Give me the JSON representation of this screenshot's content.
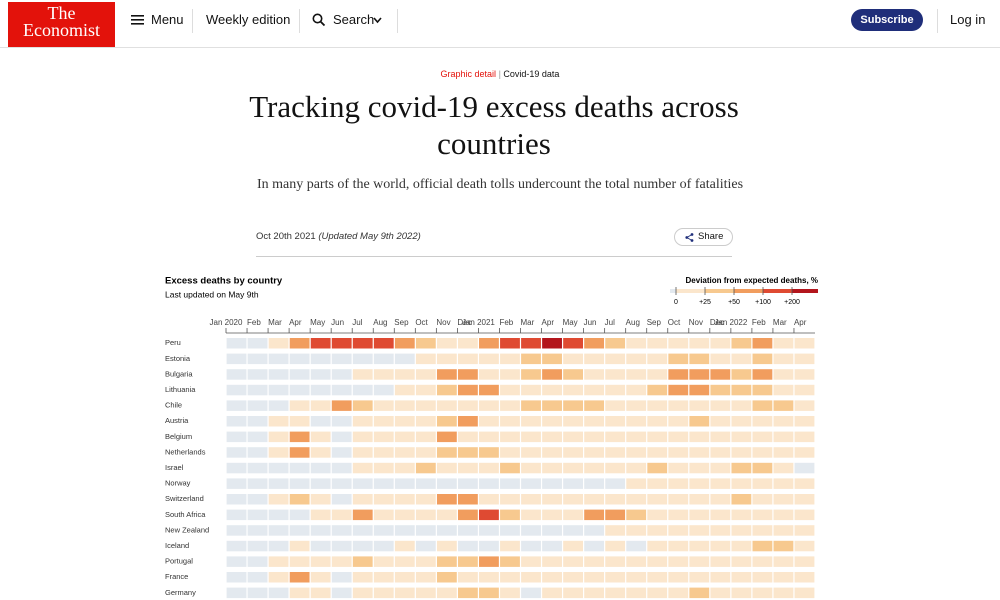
{
  "header": {
    "logo": [
      "The",
      "Economist"
    ],
    "menu": "Menu",
    "weekly": "Weekly edition",
    "search": "Search",
    "subscribe": "Subscribe",
    "login": "Log in"
  },
  "article": {
    "section": "Graphic detail",
    "topic": "Covid-19 data",
    "title": "Tracking covid-19 excess deaths across countries",
    "subtitle": "In many parts of the world, official death tolls undercount the total number of fatalities",
    "date": "Oct 20th 2021",
    "updated": "(Updated May 9th 2022)",
    "share": "Share"
  },
  "chart_data": {
    "type": "heatmap",
    "title": "Excess deaths by country",
    "subtitle": "Last updated on May 9th",
    "legend": {
      "title": "Deviation from expected deaths, %",
      "ticks": [
        0,
        {
          "value": 25,
          "label": "+25"
        },
        {
          "value": 50,
          "label": "+50"
        },
        {
          "value": 100,
          "label": "+100"
        },
        {
          "value": 200,
          "label": "+200"
        }
      ],
      "colors": [
        "#e3e9ef",
        "#fbe6cc",
        "#f7c98f",
        "#f19d5e",
        "#df4a32",
        "#b3151c"
      ]
    },
    "categories": [
      "Jan 2020",
      "Feb",
      "Mar",
      "Apr",
      "May",
      "Jun",
      "Jul",
      "Aug",
      "Sep",
      "Oct",
      "Nov",
      "Dec",
      "Jan 2021",
      "Feb",
      "Mar",
      "Apr",
      "May",
      "Jun",
      "Jul",
      "Aug",
      "Sep",
      "Oct",
      "Nov",
      "Dec",
      "Jan 2022",
      "Feb",
      "Mar",
      "Apr"
    ],
    "series": [
      {
        "name": "Peru",
        "values": [
          -5,
          -5,
          5,
          80,
          150,
          150,
          150,
          150,
          60,
          30,
          20,
          20,
          60,
          150,
          120,
          250,
          150,
          60,
          30,
          20,
          15,
          10,
          10,
          10,
          40,
          60,
          20,
          5
        ]
      },
      {
        "name": "Estonia",
        "values": [
          -5,
          -5,
          -5,
          -3,
          -5,
          -5,
          -3,
          -5,
          -3,
          5,
          10,
          15,
          15,
          20,
          40,
          40,
          20,
          10,
          5,
          10,
          15,
          30,
          40,
          20,
          15,
          30,
          20,
          10
        ]
      },
      {
        "name": "Bulgaria",
        "values": [
          -5,
          -3,
          -5,
          -5,
          -5,
          -3,
          5,
          10,
          10,
          20,
          80,
          70,
          20,
          15,
          40,
          70,
          40,
          10,
          10,
          10,
          20,
          70,
          90,
          60,
          30,
          50,
          20,
          10
        ]
      },
      {
        "name": "Lithuania",
        "values": [
          -5,
          -5,
          -5,
          -5,
          -5,
          -3,
          -3,
          -3,
          5,
          10,
          40,
          80,
          50,
          20,
          10,
          15,
          20,
          10,
          5,
          10,
          30,
          60,
          70,
          40,
          25,
          30,
          15,
          10
        ]
      },
      {
        "name": "Chile",
        "values": [
          -5,
          -5,
          -3,
          5,
          15,
          60,
          40,
          10,
          5,
          5,
          5,
          5,
          10,
          15,
          30,
          30,
          25,
          30,
          15,
          5,
          5,
          5,
          10,
          15,
          15,
          40,
          30,
          15
        ]
      },
      {
        "name": "Austria",
        "values": [
          -3,
          -5,
          5,
          10,
          -3,
          -3,
          5,
          10,
          5,
          10,
          40,
          50,
          15,
          5,
          10,
          10,
          10,
          5,
          5,
          5,
          10,
          15,
          25,
          15,
          10,
          15,
          15,
          10
        ]
      },
      {
        "name": "Belgium",
        "values": [
          -3,
          -5,
          20,
          90,
          20,
          -3,
          5,
          15,
          5,
          15,
          60,
          20,
          10,
          5,
          5,
          10,
          10,
          5,
          5,
          5,
          10,
          10,
          20,
          10,
          10,
          10,
          5,
          5
        ]
      },
      {
        "name": "Netherlands",
        "values": [
          -3,
          -5,
          15,
          50,
          10,
          -3,
          5,
          10,
          5,
          15,
          25,
          30,
          30,
          10,
          10,
          15,
          15,
          5,
          10,
          10,
          10,
          15,
          20,
          15,
          15,
          10,
          10,
          5
        ]
      },
      {
        "name": "Israel",
        "values": [
          -3,
          -3,
          -3,
          -3,
          -3,
          -3,
          5,
          10,
          20,
          30,
          10,
          10,
          20,
          25,
          15,
          5,
          5,
          0,
          5,
          15,
          30,
          15,
          5,
          10,
          25,
          30,
          10,
          -3
        ]
      },
      {
        "name": "Norway",
        "values": [
          -5,
          -5,
          -3,
          -3,
          -5,
          -5,
          -5,
          -5,
          -5,
          -5,
          -3,
          -3,
          -3,
          -5,
          -3,
          -3,
          -3,
          -3,
          -3,
          5,
          10,
          10,
          15,
          15,
          15,
          10,
          10,
          5
        ]
      },
      {
        "name": "Switzerland",
        "values": [
          -3,
          -3,
          10,
          40,
          5,
          -3,
          5,
          5,
          5,
          15,
          70,
          60,
          20,
          5,
          5,
          5,
          5,
          5,
          5,
          5,
          10,
          10,
          15,
          15,
          25,
          15,
          10,
          5
        ]
      },
      {
        "name": "South Africa",
        "values": [
          -3,
          -3,
          -5,
          -5,
          5,
          20,
          60,
          15,
          5,
          5,
          15,
          60,
          120,
          40,
          10,
          10,
          15,
          60,
          70,
          30,
          15,
          10,
          10,
          15,
          15,
          10,
          10,
          10
        ]
      },
      {
        "name": "New Zealand",
        "values": [
          -5,
          -5,
          -5,
          -5,
          -5,
          -5,
          -5,
          -5,
          -5,
          -5,
          -5,
          -5,
          -5,
          -5,
          -3,
          -3,
          -3,
          -3,
          5,
          5,
          5,
          5,
          10,
          5,
          5,
          10,
          15,
          15
        ]
      },
      {
        "name": "Iceland",
        "values": [
          -5,
          -5,
          -3,
          5,
          -3,
          -5,
          -3,
          -5,
          5,
          -3,
          5,
          -5,
          -3,
          5,
          -3,
          -5,
          5,
          -3,
          5,
          -3,
          10,
          5,
          15,
          10,
          20,
          40,
          30,
          10
        ]
      },
      {
        "name": "Portugal",
        "values": [
          -3,
          -3,
          5,
          15,
          10,
          5,
          25,
          15,
          10,
          15,
          30,
          25,
          70,
          40,
          10,
          5,
          5,
          5,
          10,
          10,
          5,
          5,
          10,
          10,
          20,
          15,
          10,
          10
        ]
      },
      {
        "name": "France",
        "values": [
          -3,
          -3,
          20,
          60,
          5,
          -3,
          5,
          10,
          5,
          10,
          25,
          15,
          10,
          10,
          10,
          10,
          5,
          5,
          5,
          10,
          5,
          5,
          10,
          10,
          15,
          10,
          10,
          5
        ]
      },
      {
        "name": "Germany",
        "values": [
          -3,
          -3,
          -3,
          10,
          5,
          -3,
          5,
          10,
          5,
          5,
          15,
          30,
          25,
          5,
          -3,
          5,
          5,
          5,
          5,
          5,
          10,
          15,
          25,
          20,
          10,
          10,
          10,
          5
        ]
      }
    ]
  }
}
